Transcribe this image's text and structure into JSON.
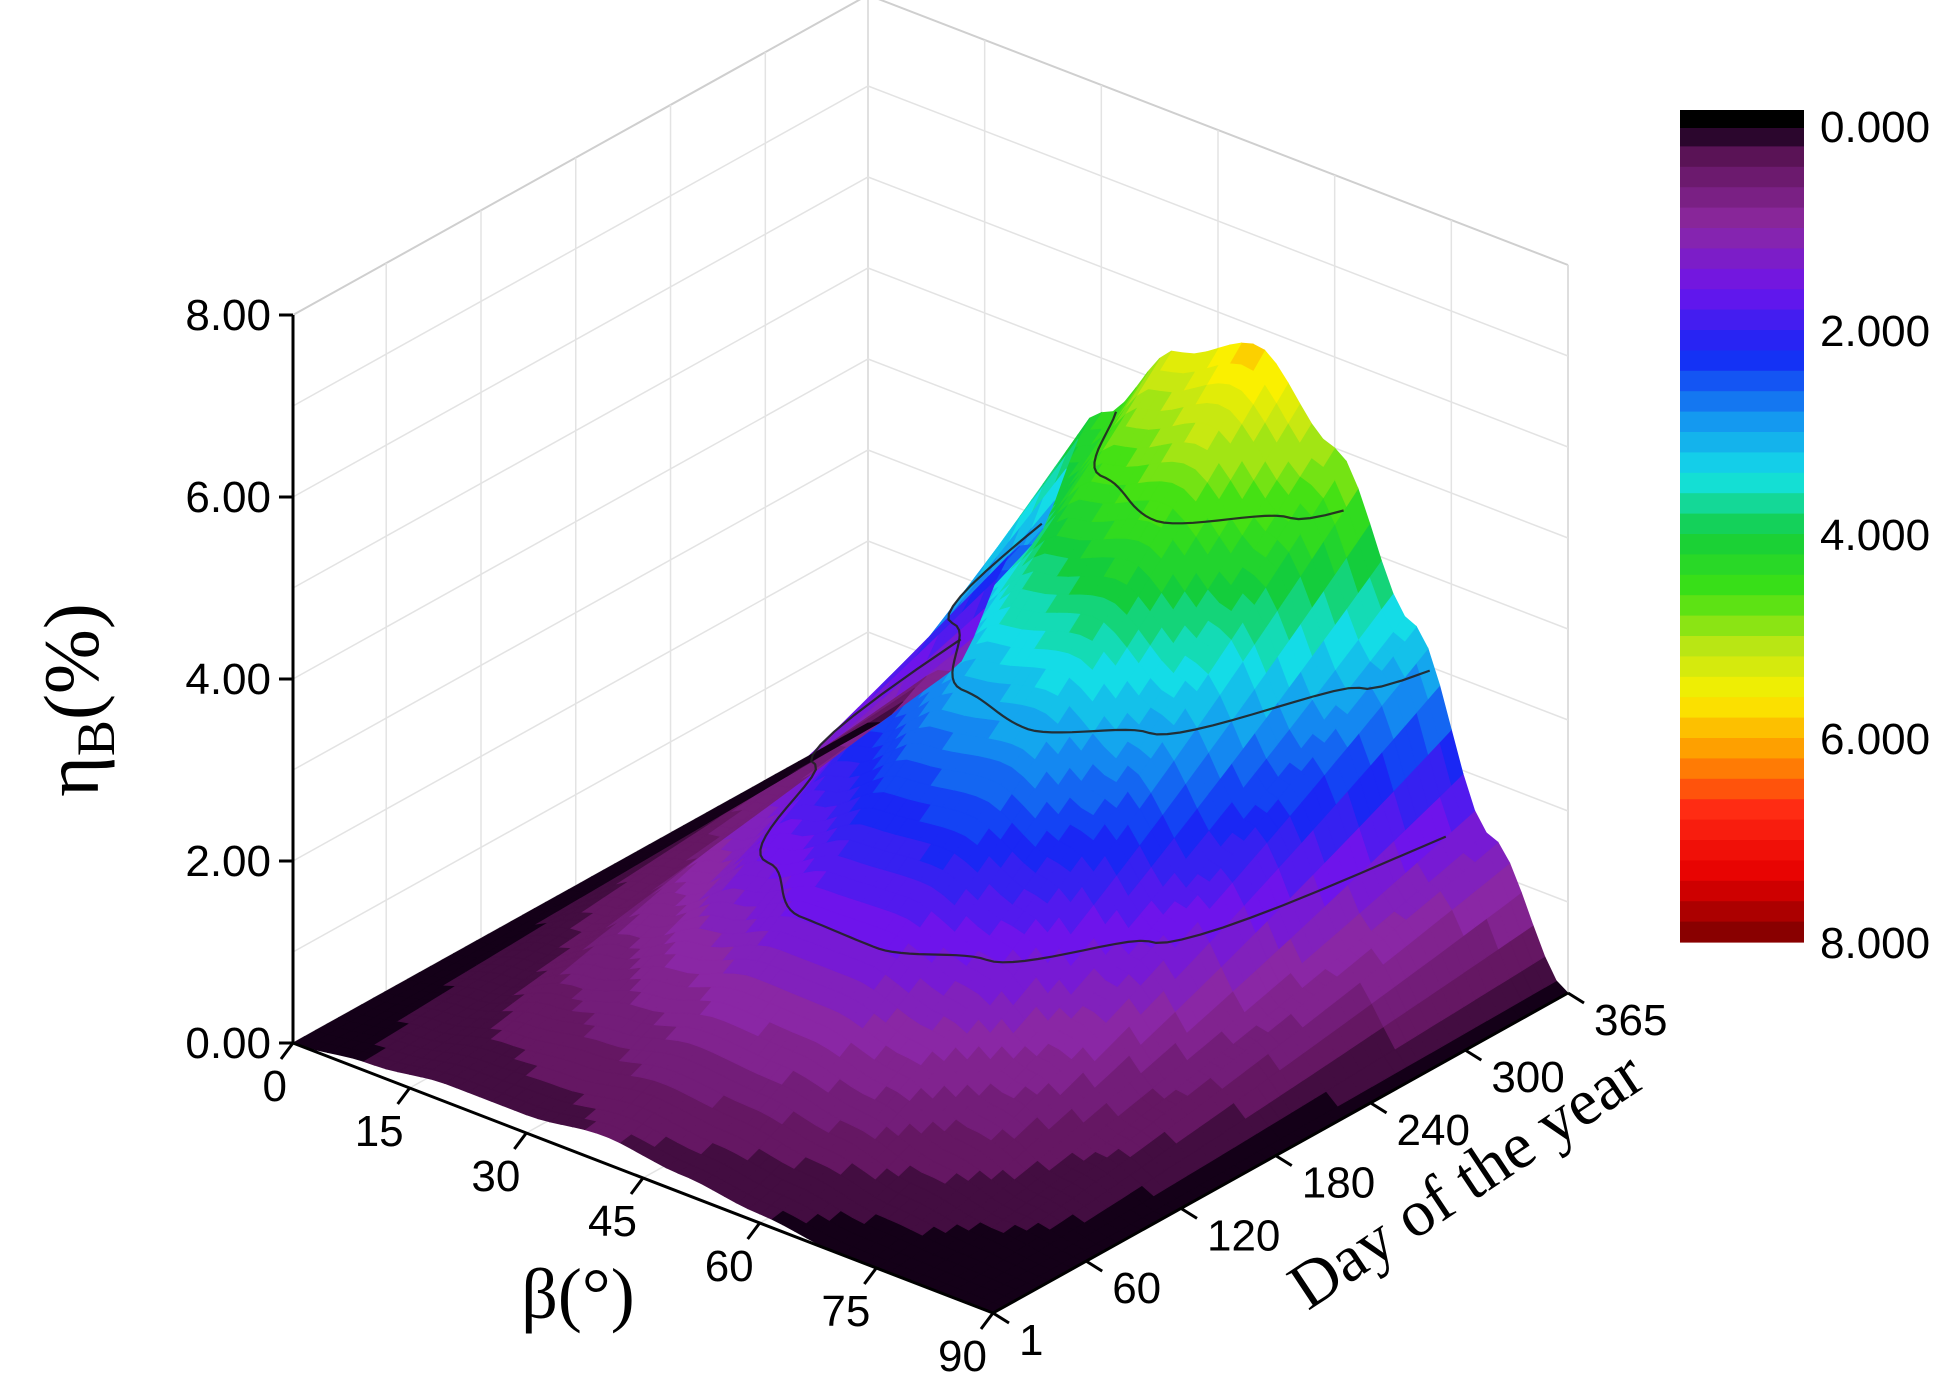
{
  "chart_data": {
    "type": "surface3d",
    "title": "",
    "zlabel": "ηB(%)",
    "zlabel_main": "η",
    "zlabel_sub": "B",
    "zlabel_tail": "(%)",
    "xlabel": "β(°)",
    "ylabel": "Day of the year",
    "z_ticks": [
      "0.00",
      "2.00",
      "4.00",
      "6.00",
      "8.00"
    ],
    "z_range": [
      0,
      8
    ],
    "x_ticks": [
      "0",
      "15",
      "30",
      "45",
      "60",
      "75",
      "90"
    ],
    "x_range": [
      0,
      90
    ],
    "y_ticks": [
      "1",
      "60",
      "120",
      "180",
      "240",
      "300",
      "365"
    ],
    "y_tick_values": [
      1,
      60,
      120,
      180,
      240,
      300,
      365
    ],
    "y_range": [
      1,
      365
    ],
    "colorbar": {
      "labels": [
        "0.000",
        "2.000",
        "4.000",
        "6.000",
        "8.000"
      ],
      "range": [
        0,
        8
      ]
    },
    "surface_profile_beta": [
      0,
      10,
      20,
      30,
      40,
      50,
      60,
      70,
      80,
      90
    ],
    "surface_profile_day1": [
      0.0,
      0.1,
      0.2,
      0.2,
      0.3,
      0.2,
      0.1,
      0.0,
      0.0,
      0.0
    ],
    "surface_profile_day365": [
      0.0,
      0.9,
      2.6,
      4.4,
      5.4,
      5.8,
      5.0,
      3.4,
      1.4,
      0.0
    ],
    "contour_levels": [
      1.5,
      3.0,
      4.5,
      6.0
    ]
  }
}
